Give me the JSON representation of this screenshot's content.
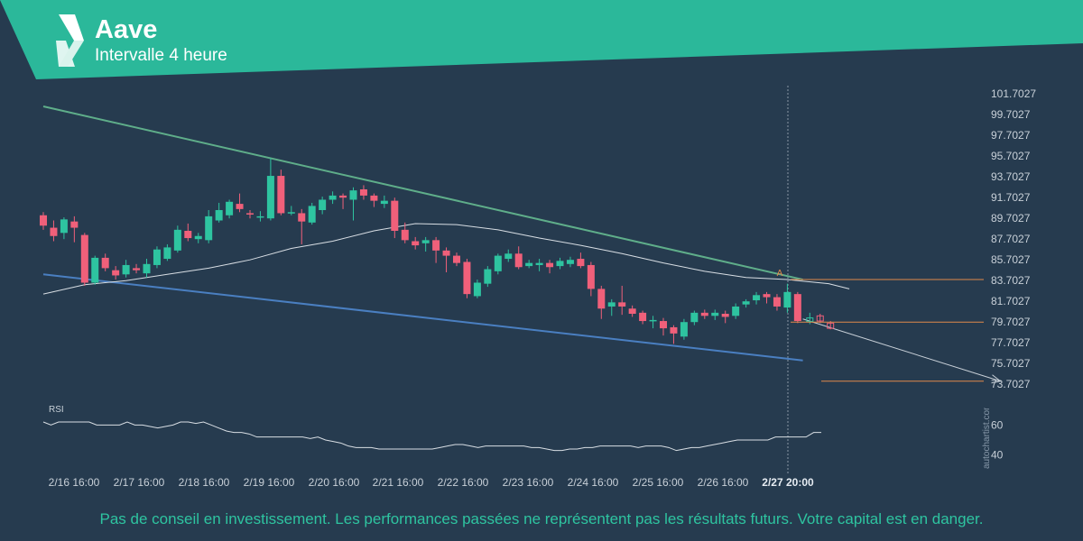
{
  "header": {
    "title": "Aave",
    "subtitle": "Intervalle 4 heure",
    "logo_icon": "autochartist-logo-icon"
  },
  "colors": {
    "background": "#263b4f",
    "banner": "#2bb89a",
    "up": "#2ec4a0",
    "down": "#f0607a",
    "support": "#4a7fc1",
    "resistance": "#5fae8a",
    "level": "#e08a4a",
    "text": "#c8d0d8"
  },
  "chart_data": {
    "type": "candlestick",
    "x_tick_labels": [
      "2/16 16:00",
      "2/17 16:00",
      "2/18 16:00",
      "2/19 16:00",
      "2/20 16:00",
      "2/21 16:00",
      "2/22 16:00",
      "2/23 16:00",
      "2/24 16:00",
      "2/25 16:00",
      "2/26 16:00",
      "2/27 20:00"
    ],
    "y_tick_labels": [
      "101.7027",
      "99.7027",
      "97.7027",
      "95.7027",
      "93.7027",
      "91.7027",
      "89.7027",
      "87.7027",
      "85.7027",
      "83.7027",
      "81.7027",
      "79.7027",
      "77.7027",
      "75.7027",
      "73.7027"
    ],
    "ylim": [
      72.5,
      102.5
    ],
    "candles": [
      [
        90,
        89,
        90.3,
        88.6
      ],
      [
        88.8,
        88,
        89.5,
        87.5
      ],
      [
        88.3,
        89.6,
        89.8,
        87.7
      ],
      [
        89.4,
        88.8,
        89.9,
        87.4
      ],
      [
        88.1,
        83.5,
        88.3,
        83.2
      ],
      [
        83.5,
        85.9,
        86.1,
        83.3
      ],
      [
        85.9,
        84.9,
        86.3,
        84.6
      ],
      [
        84.7,
        84.2,
        85.1,
        83.8
      ],
      [
        84.3,
        85.2,
        85.7,
        84
      ],
      [
        84.9,
        84.7,
        85.3,
        84.4
      ],
      [
        84.4,
        85.3,
        85.8,
        84
      ],
      [
        85.2,
        86.7,
        87,
        84.9
      ],
      [
        85.8,
        86.9,
        87.2,
        85.6
      ],
      [
        86.6,
        88.6,
        89,
        86.4
      ],
      [
        88.5,
        87.8,
        89.2,
        87.5
      ],
      [
        87.7,
        88,
        88.3,
        87.3
      ],
      [
        87.6,
        89.9,
        90.5,
        87.3
      ],
      [
        89.5,
        90.5,
        91.2,
        89.3
      ],
      [
        90,
        91.3,
        91.5,
        89.7
      ],
      [
        91.1,
        90.6,
        92.1,
        90.3
      ],
      [
        90.2,
        90.1,
        90.5,
        89.7
      ],
      [
        89.8,
        89.9,
        90.4,
        89.4
      ],
      [
        89.7,
        93.8,
        95.5,
        89.5
      ],
      [
        93.8,
        90.2,
        94.4,
        90
      ],
      [
        90.2,
        90.3,
        90.9,
        90
      ],
      [
        90.2,
        89.4,
        90.6,
        87.2
      ],
      [
        89.3,
        90.9,
        91.2,
        89.1
      ],
      [
        90.5,
        91.5,
        91.8,
        90.1
      ],
      [
        91.5,
        91.9,
        92.3,
        91.1
      ],
      [
        91.9,
        91.7,
        92.1,
        90.6
      ],
      [
        91.5,
        92.4,
        92.7,
        89.5
      ],
      [
        92.5,
        91.9,
        92.9,
        91.5
      ],
      [
        91.9,
        91.4,
        92.1,
        90.8
      ],
      [
        91.1,
        91.4,
        91.9,
        90.7
      ],
      [
        91.4,
        88.5,
        91.7,
        87.8
      ],
      [
        88.6,
        87.6,
        89.3,
        87.3
      ],
      [
        87.5,
        87.1,
        87.9,
        86.7
      ],
      [
        87.3,
        87.6,
        87.9,
        86.5
      ],
      [
        87.6,
        86.6,
        87.9,
        85.4
      ],
      [
        86.6,
        86.1,
        86.9,
        84.5
      ],
      [
        86.1,
        85.4,
        86.4,
        85.1
      ],
      [
        85.5,
        82.4,
        85.8,
        82
      ],
      [
        82.2,
        83.5,
        83.8,
        82
      ],
      [
        83.4,
        84.8,
        85.1,
        83.1
      ],
      [
        84.6,
        86.1,
        86.3,
        84.3
      ],
      [
        85.8,
        86.3,
        86.7,
        85.5
      ],
      [
        86.3,
        85,
        87,
        84.8
      ],
      [
        85.1,
        85.4,
        85.7,
        84.9
      ],
      [
        85.2,
        85.4,
        85.8,
        84.6
      ],
      [
        85.4,
        85,
        85.7,
        84.4
      ],
      [
        85.1,
        85.6,
        85.9,
        84.8
      ],
      [
        85.3,
        85.7,
        86,
        85
      ],
      [
        85.8,
        85.1,
        86.4,
        84.9
      ],
      [
        85.2,
        82.9,
        85.5,
        82.2
      ],
      [
        82.9,
        81,
        83.2,
        80
      ],
      [
        81.2,
        81.6,
        81.9,
        80.3
      ],
      [
        81.6,
        81.2,
        83.2,
        80.4
      ],
      [
        81,
        80.5,
        81.3,
        80.2
      ],
      [
        80.6,
        79.8,
        80.8,
        79.5
      ],
      [
        79.9,
        79.9,
        80.3,
        79.1
      ],
      [
        79.8,
        79.1,
        80.1,
        78.4
      ],
      [
        79.2,
        78.6,
        79.4,
        77.6
      ],
      [
        78.3,
        79.7,
        80
      ],
      [
        79.7,
        80.6,
        80.8,
        79.4
      ],
      [
        80.6,
        80.3,
        80.9,
        80
      ],
      [
        80.3,
        80.6,
        80.9,
        79.9
      ],
      [
        80.5,
        80.2,
        80.8,
        79.6
      ],
      [
        80.3,
        81.2,
        81.5,
        80
      ],
      [
        81.4,
        81.7,
        81.9,
        81.1
      ],
      [
        81.8,
        82.3,
        82.6,
        81.4
      ],
      [
        82.4,
        82.1,
        82.6,
        81.5
      ],
      [
        82.1,
        81.2,
        82.4,
        80.8
      ],
      [
        81.1,
        82.6,
        83.4,
        80.6
      ],
      [
        82.4,
        79.8,
        82.6,
        79.6
      ]
    ],
    "forecast_candles": [
      [
        80,
        80.1,
        80.6,
        79.5
      ],
      [
        80.3,
        79.8,
        80.5,
        79.6
      ],
      [
        79.6,
        79.1,
        79.8,
        79
      ]
    ],
    "moving_average": [
      [
        0,
        82.4
      ],
      [
        4,
        83.3
      ],
      [
        8,
        83.7
      ],
      [
        12,
        84.3
      ],
      [
        16,
        84.9
      ],
      [
        20,
        85.7
      ],
      [
        24,
        86.8
      ],
      [
        28,
        87.5
      ],
      [
        32,
        88.5
      ],
      [
        36,
        89.2
      ],
      [
        40,
        89.1
      ],
      [
        44,
        88.6
      ],
      [
        48,
        87.8
      ],
      [
        52,
        87.1
      ],
      [
        56,
        86.3
      ],
      [
        60,
        85.4
      ],
      [
        64,
        84.6
      ],
      [
        68,
        84.0
      ],
      [
        72,
        83.8
      ],
      [
        76,
        83.4
      ],
      [
        78,
        82.9
      ]
    ],
    "resistance_line": [
      [
        0,
        100.5
      ],
      [
        73.5,
        83.8
      ]
    ],
    "support_line": [
      [
        0,
        84.3
      ],
      [
        73.5,
        76.0
      ]
    ],
    "projection_arrow": [
      [
        73.5,
        80
      ],
      [
        90,
        74
      ]
    ],
    "levels": [
      {
        "value": 83.8,
        "x_from": 73.5,
        "x_to": 99
      },
      {
        "value": 79.7,
        "x_from": 73.5,
        "x_to": 99
      },
      {
        "value": 74.0,
        "x_from": 78,
        "x_to": 99
      }
    ],
    "pattern_marker": "A",
    "rsi": {
      "label": "RSI",
      "ylim": [
        32,
        68
      ],
      "tick_labels": [
        "60",
        "40"
      ],
      "tick_values": [
        60,
        40
      ],
      "values": [
        62,
        60,
        62,
        62,
        62,
        62,
        62,
        60,
        60,
        60,
        60,
        62,
        60,
        60,
        59,
        58,
        59,
        60,
        62,
        62,
        61,
        62,
        60,
        58,
        56,
        55,
        55,
        54,
        52,
        52,
        52,
        52,
        52,
        52,
        52,
        51,
        52,
        50,
        49,
        48,
        46,
        45,
        45,
        45,
        44,
        44,
        44,
        44,
        44,
        44,
        44,
        44,
        45,
        46,
        47,
        47,
        46,
        45,
        46,
        46,
        46,
        46,
        46,
        46,
        45,
        45,
        44,
        43,
        43,
        44,
        44,
        45,
        45,
        46,
        46,
        46,
        46,
        46,
        45,
        46,
        46,
        46,
        45,
        43,
        44,
        45,
        45,
        46,
        47,
        48,
        49,
        50,
        50,
        50,
        50,
        50,
        52,
        52,
        52,
        52,
        52,
        55,
        55
      ]
    }
  },
  "branding": {
    "watermark": "autochartist.com"
  },
  "disclaimer": "Pas de conseil en investissement. Les performances passées ne représentent pas les résultats futurs. Votre capital est en danger."
}
